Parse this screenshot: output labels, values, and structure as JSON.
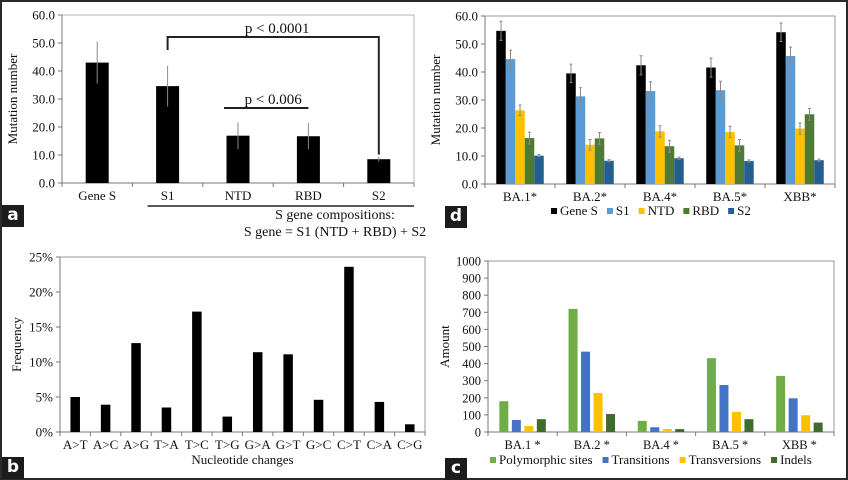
{
  "panels": {
    "a": {
      "label": "a"
    },
    "b": {
      "label": "b"
    },
    "c": {
      "label": "c"
    },
    "d": {
      "label": "d"
    }
  },
  "caption_a": {
    "line1": "S gene compositions:",
    "line2": "S gene = S1 (NTD + RBD) + S2"
  },
  "chart_data": [
    {
      "id": "a",
      "type": "bar",
      "title": "",
      "xlabel": "",
      "ylabel": "Mutation number",
      "categories": [
        "Gene S",
        "S1",
        "NTD",
        "RBD",
        "S2"
      ],
      "values": [
        43.0,
        34.6,
        16.9,
        16.7,
        8.5
      ],
      "errors": [
        7.5,
        7.3,
        4.8,
        4.7,
        0.9
      ],
      "ylim": [
        0,
        60
      ],
      "yticks": [
        "0.0",
        "10.0",
        "20.0",
        "30.0",
        "40.0",
        "50.0",
        "60.0"
      ],
      "bar_color": "#000000",
      "annotations": [
        {
          "text": "p < 0.0001",
          "from": "S1",
          "to": "S2",
          "type": "bracket"
        },
        {
          "text": "p < 0.006",
          "from": "NTD",
          "to": "RBD",
          "type": "line"
        }
      ],
      "underline_group": [
        "S1",
        "NTD",
        "RBD",
        "S2"
      ],
      "grid": false
    },
    {
      "id": "d",
      "type": "bar",
      "title": "",
      "xlabel": "",
      "ylabel": "Mutation number",
      "categories": [
        "BA.1*",
        "BA.2*",
        "BA.4*",
        "BA.5*",
        "XBB*"
      ],
      "series": [
        {
          "name": "Gene S",
          "color": "#000000",
          "values": [
            54.7,
            39.5,
            42.4,
            41.6,
            54.2
          ],
          "errors": [
            3.4,
            3.3,
            3.4,
            3.4,
            3.3
          ]
        },
        {
          "name": "S1",
          "color": "#5b9bd5",
          "values": [
            44.6,
            31.3,
            33.2,
            33.5,
            45.7
          ],
          "errors": [
            3.2,
            3.1,
            3.3,
            3.2,
            3.2
          ]
        },
        {
          "name": "NTD",
          "color": "#ffc000",
          "values": [
            26.3,
            14.0,
            18.8,
            18.6,
            19.8
          ],
          "errors": [
            1.9,
            1.9,
            2.0,
            2.0,
            2.0
          ]
        },
        {
          "name": "RBD",
          "color": "#4e7a35",
          "values": [
            16.4,
            16.3,
            13.5,
            13.8,
            24.9
          ],
          "errors": [
            2.1,
            2.1,
            2.1,
            2.1,
            2.1
          ]
        },
        {
          "name": "S2",
          "color": "#255e91",
          "values": [
            10.1,
            8.3,
            9.2,
            8.2,
            8.5
          ],
          "errors": [
            0.4,
            0.4,
            0.4,
            0.4,
            0.4
          ]
        }
      ],
      "ylim": [
        0,
        60
      ],
      "yticks": [
        "0.0",
        "10.0",
        "20.0",
        "30.0",
        "40.0",
        "50.0",
        "60.0"
      ],
      "legend": "bottom",
      "grid": false
    },
    {
      "id": "b",
      "type": "bar",
      "title": "",
      "xlabel": "Nucleotide changes",
      "ylabel": "Frequency",
      "categories": [
        "A>T",
        "A>C",
        "A>G",
        "T>A",
        "T>C",
        "T>G",
        "G>A",
        "G>T",
        "G>C",
        "C>T",
        "C>A",
        "C>G"
      ],
      "values": [
        5.0,
        3.9,
        12.7,
        3.5,
        17.2,
        2.2,
        11.4,
        11.1,
        4.6,
        23.6,
        4.3,
        1.1
      ],
      "unit": "%",
      "ylim": [
        0,
        25
      ],
      "yticks": [
        "0%",
        "5%",
        "10%",
        "15%",
        "20%",
        "25%"
      ],
      "bar_color": "#000000",
      "grid": false
    },
    {
      "id": "c",
      "type": "bar",
      "title": "",
      "xlabel": "",
      "ylabel": "Amount",
      "categories": [
        "BA.1 *",
        "BA.2 *",
        "BA.4 *",
        "BA.5 *",
        "XBB *"
      ],
      "series": [
        {
          "name": "Polymorphic sites",
          "color": "#70ad47",
          "values": [
            180,
            720,
            65,
            432,
            328
          ]
        },
        {
          "name": "Transitions",
          "color": "#4472c4",
          "values": [
            70,
            470,
            28,
            275,
            197
          ]
        },
        {
          "name": "Transversions",
          "color": "#ffc000",
          "values": [
            35,
            228,
            17,
            118,
            98
          ]
        },
        {
          "name": "Indels",
          "color": "#3f6b2f",
          "values": [
            75,
            105,
            17,
            75,
            55
          ]
        }
      ],
      "ylim": [
        0,
        1000
      ],
      "yticks": [
        "0",
        "100",
        "200",
        "300",
        "400",
        "500",
        "600",
        "700",
        "800",
        "900",
        "1000"
      ],
      "legend": "bottom",
      "grid": false
    }
  ]
}
